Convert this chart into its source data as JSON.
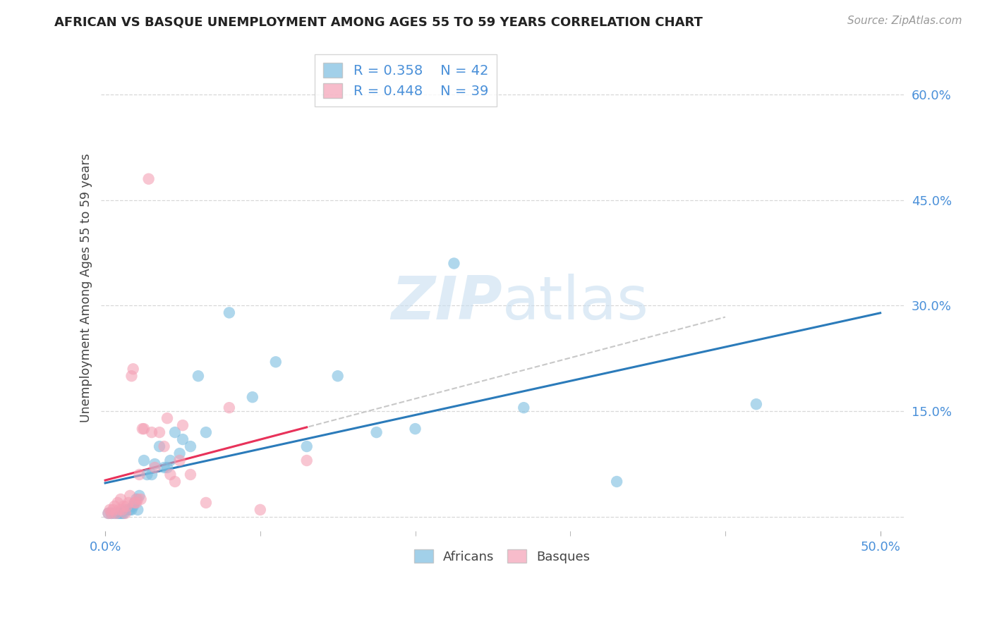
{
  "title": "AFRICAN VS BASQUE UNEMPLOYMENT AMONG AGES 55 TO 59 YEARS CORRELATION CHART",
  "source": "Source: ZipAtlas.com",
  "ylabel": "Unemployment Among Ages 55 to 59 years",
  "xlim": [
    -0.003,
    0.515
  ],
  "ylim": [
    -0.02,
    0.67
  ],
  "african_color": "#7bbde0",
  "basque_color": "#f4a0b5",
  "african_line_color": "#2b7bba",
  "basque_line_color": "#e8325a",
  "basque_dashed_color": "#c8c8c8",
  "watermark_zip": "ZIP",
  "watermark_atlas": "atlas",
  "legend_african_R": "R = 0.358",
  "legend_african_N": "N = 42",
  "legend_basque_R": "R = 0.448",
  "legend_basque_N": "N = 39",
  "africans_x": [
    0.002,
    0.004,
    0.006,
    0.008,
    0.009,
    0.01,
    0.011,
    0.012,
    0.013,
    0.015,
    0.016,
    0.017,
    0.018,
    0.019,
    0.02,
    0.021,
    0.022,
    0.025,
    0.027,
    0.03,
    0.032,
    0.035,
    0.038,
    0.04,
    0.042,
    0.045,
    0.048,
    0.05,
    0.055,
    0.06,
    0.065,
    0.08,
    0.095,
    0.11,
    0.13,
    0.15,
    0.175,
    0.2,
    0.225,
    0.27,
    0.33,
    0.42
  ],
  "africans_y": [
    0.005,
    0.005,
    0.005,
    0.005,
    0.005,
    0.005,
    0.005,
    0.005,
    0.01,
    0.01,
    0.01,
    0.01,
    0.015,
    0.02,
    0.025,
    0.01,
    0.03,
    0.08,
    0.06,
    0.06,
    0.075,
    0.1,
    0.07,
    0.07,
    0.08,
    0.12,
    0.09,
    0.11,
    0.1,
    0.2,
    0.12,
    0.29,
    0.17,
    0.22,
    0.1,
    0.2,
    0.12,
    0.125,
    0.36,
    0.155,
    0.05,
    0.16
  ],
  "basques_x": [
    0.002,
    0.003,
    0.004,
    0.005,
    0.006,
    0.007,
    0.008,
    0.009,
    0.01,
    0.011,
    0.012,
    0.013,
    0.014,
    0.015,
    0.016,
    0.017,
    0.018,
    0.019,
    0.02,
    0.021,
    0.022,
    0.023,
    0.024,
    0.025,
    0.028,
    0.03,
    0.032,
    0.035,
    0.038,
    0.04,
    0.042,
    0.045,
    0.048,
    0.05,
    0.055,
    0.065,
    0.08,
    0.1,
    0.13
  ],
  "basques_y": [
    0.005,
    0.01,
    0.005,
    0.01,
    0.015,
    0.005,
    0.02,
    0.01,
    0.025,
    0.01,
    0.015,
    0.005,
    0.015,
    0.02,
    0.03,
    0.2,
    0.21,
    0.02,
    0.02,
    0.025,
    0.06,
    0.025,
    0.125,
    0.125,
    0.48,
    0.12,
    0.07,
    0.12,
    0.1,
    0.14,
    0.06,
    0.05,
    0.08,
    0.13,
    0.06,
    0.02,
    0.155,
    0.01,
    0.08
  ],
  "background_color": "#ffffff",
  "grid_color": "#d8d8d8",
  "ytick_vals": [
    0.0,
    0.15,
    0.3,
    0.45,
    0.6
  ],
  "ytick_labels": [
    "",
    "15.0%",
    "30.0%",
    "45.0%",
    "60.0%"
  ],
  "xtick_major_vals": [
    0.0,
    0.5
  ],
  "xtick_major_labels": [
    "0.0%",
    "50.0%"
  ],
  "xtick_minor_vals": [
    0.1,
    0.2,
    0.3,
    0.4
  ],
  "tick_label_color": "#4a90d9",
  "legend_text_color": "#4a90d9"
}
